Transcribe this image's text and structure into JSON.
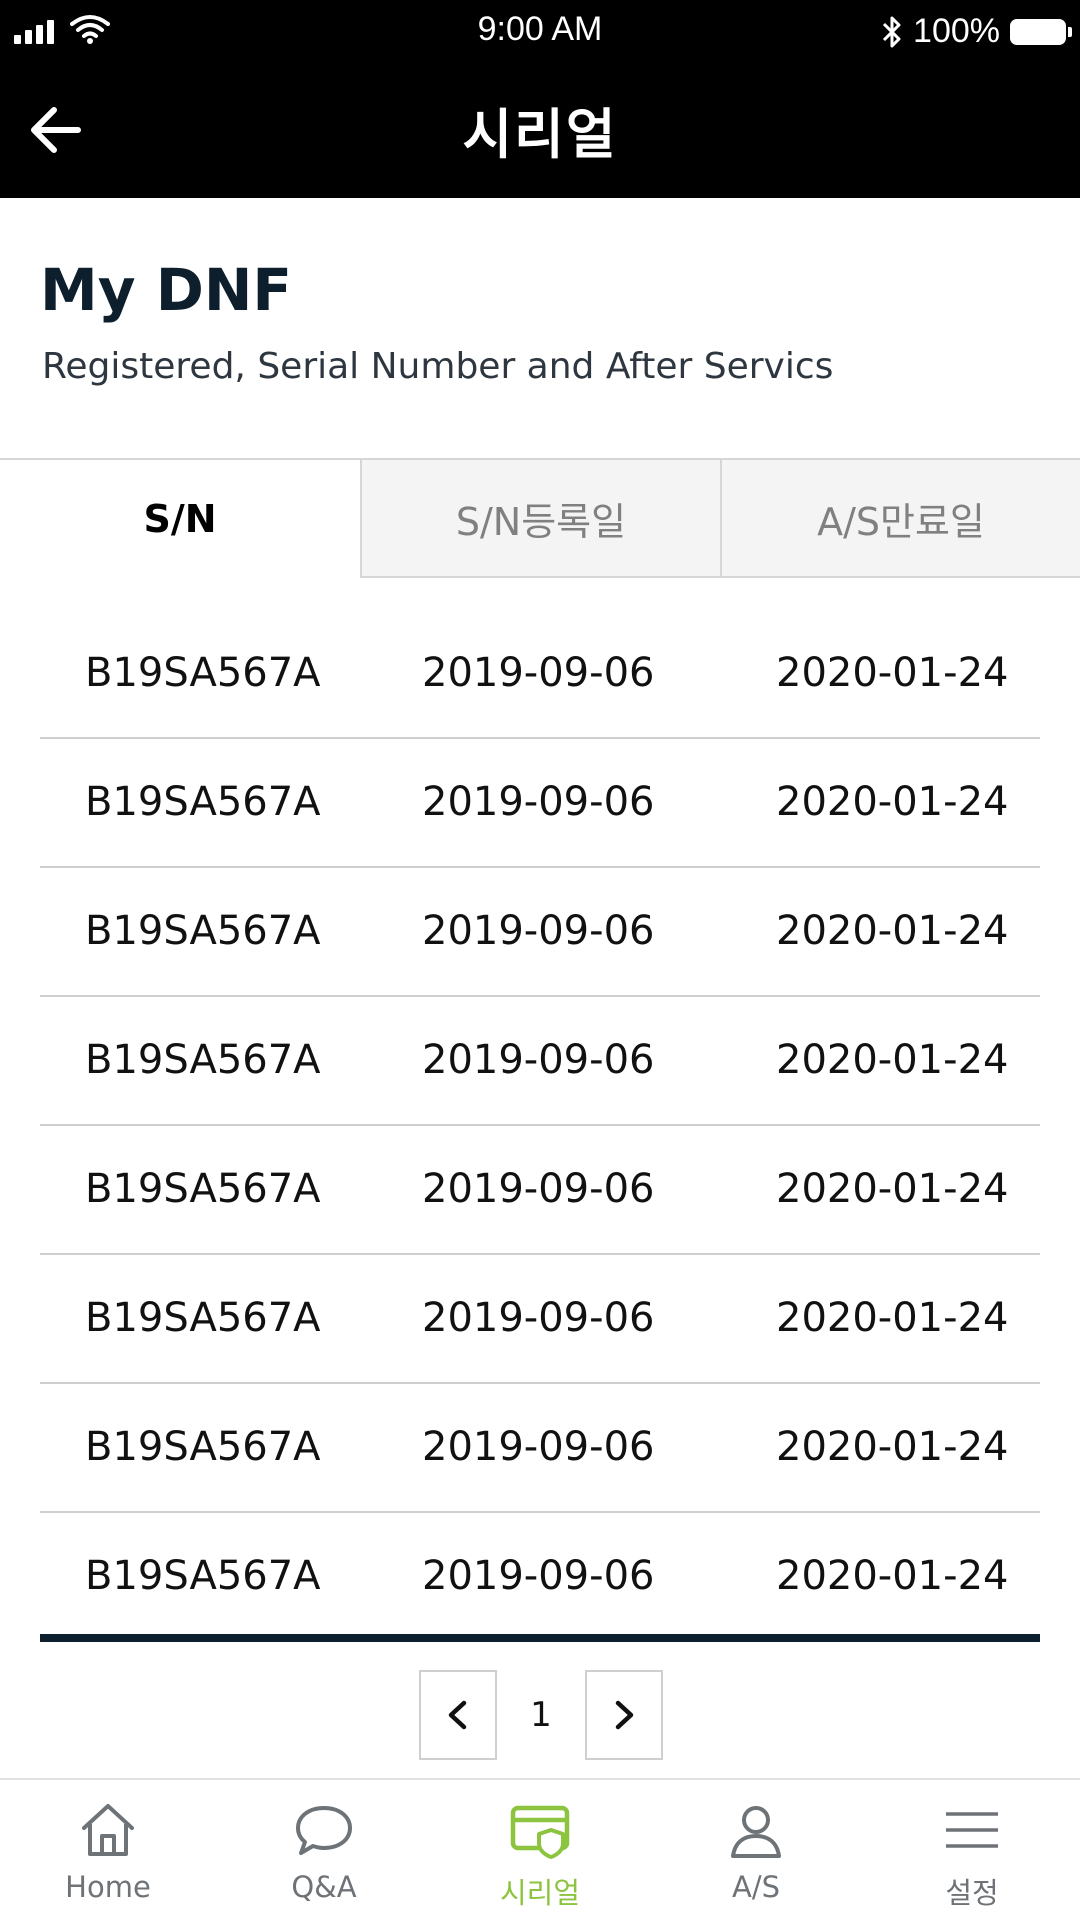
{
  "status_bar": {
    "time": "9:00 AM",
    "battery": "100%"
  },
  "header": {
    "title": "시리얼"
  },
  "intro": {
    "title": "My DNF",
    "subtitle": "Registered, Serial Number and After Servics"
  },
  "tabs": [
    {
      "label": "S/N",
      "active": true
    },
    {
      "label": "S/N등록일",
      "active": false
    },
    {
      "label": "A/S만료일",
      "active": false
    }
  ],
  "rows": [
    {
      "sn": "B19SA567A",
      "registered": "2019-09-06",
      "expires": "2020-01-24"
    },
    {
      "sn": "B19SA567A",
      "registered": "2019-09-06",
      "expires": "2020-01-24"
    },
    {
      "sn": "B19SA567A",
      "registered": "2019-09-06",
      "expires": "2020-01-24"
    },
    {
      "sn": "B19SA567A",
      "registered": "2019-09-06",
      "expires": "2020-01-24"
    },
    {
      "sn": "B19SA567A",
      "registered": "2019-09-06",
      "expires": "2020-01-24"
    },
    {
      "sn": "B19SA567A",
      "registered": "2019-09-06",
      "expires": "2020-01-24"
    },
    {
      "sn": "B19SA567A",
      "registered": "2019-09-06",
      "expires": "2020-01-24"
    },
    {
      "sn": "B19SA567A",
      "registered": "2019-09-06",
      "expires": "2020-01-24"
    }
  ],
  "pagination": {
    "current_page": "1"
  },
  "bottom_nav": [
    {
      "label": "Home",
      "icon": "home-icon"
    },
    {
      "label": "Q&A",
      "icon": "chat-bubble-icon"
    },
    {
      "label": "시리얼",
      "icon": "serial-card-icon",
      "active": true
    },
    {
      "label": "A/S",
      "icon": "user-icon"
    },
    {
      "label": "설정",
      "icon": "menu-icon"
    }
  ],
  "colors": {
    "header_bg": "#000000",
    "active_nav": "#8cc43f",
    "table_end_bar": "#0d1e2c"
  }
}
